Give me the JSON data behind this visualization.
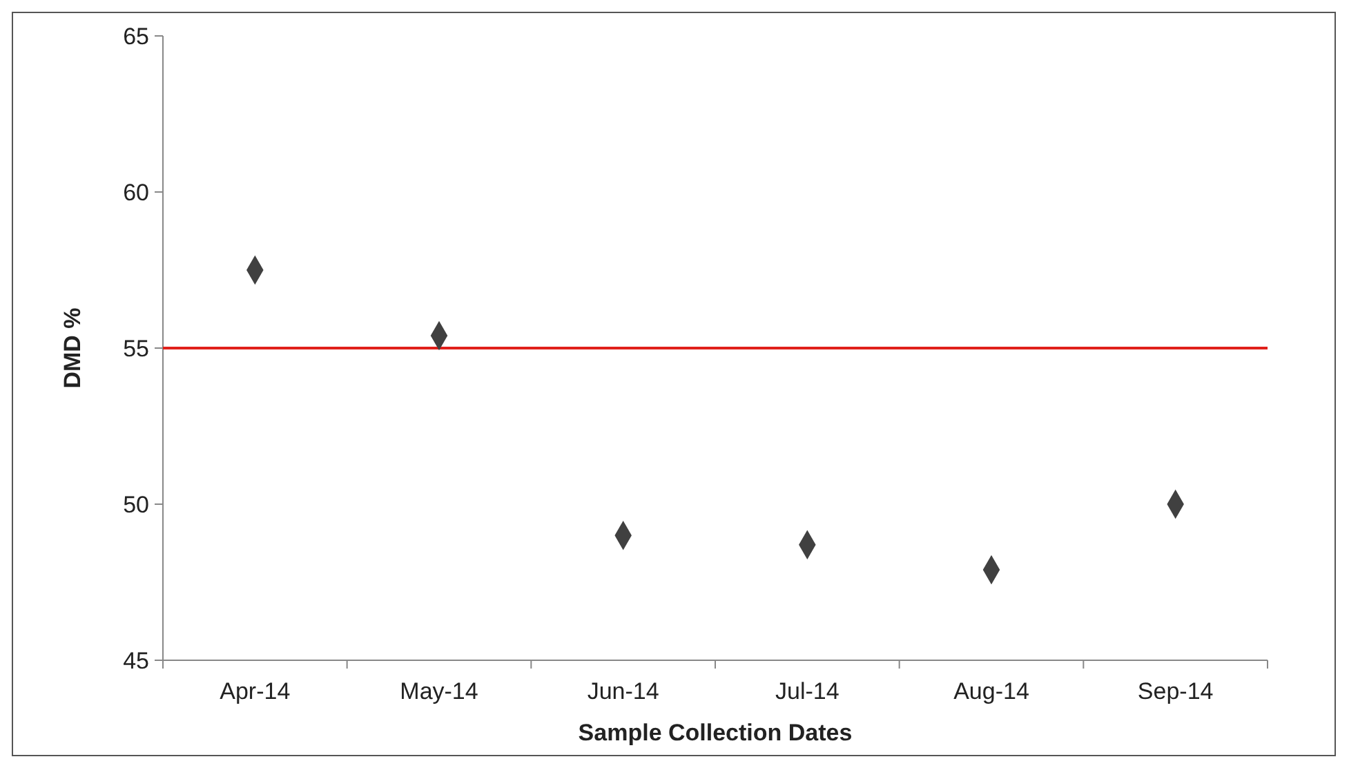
{
  "chart_data": {
    "type": "scatter",
    "xlabel": "Sample Collection Dates",
    "ylabel": "DMD %",
    "categories": [
      "Apr-14",
      "May-14",
      "Jun-14",
      "Jul-14",
      "Aug-14",
      "Sep-14"
    ],
    "series": [
      {
        "color": "#404040",
        "values": [
          57.5,
          55.4,
          49.0,
          48.7,
          47.9,
          50.0
        ]
      }
    ],
    "ylim": [
      45,
      65
    ],
    "yticks": [
      45,
      50,
      55,
      60,
      65
    ],
    "grid": false,
    "marker": "diamond",
    "ref_lines": [
      {
        "axis": "y",
        "value": 55,
        "color": "#e0201b"
      }
    ]
  }
}
